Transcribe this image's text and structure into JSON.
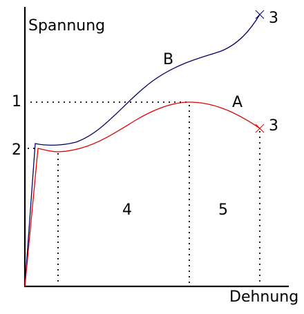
{
  "axes": {
    "y_label": "Spannung",
    "x_label": "Dehnung"
  },
  "curves": {
    "A": {
      "label": "A",
      "color": "#e00000"
    },
    "B": {
      "label": "B",
      "color": "#000066"
    }
  },
  "markers": {
    "level_1": "1",
    "level_2": "2",
    "fracture_A": "3",
    "fracture_B": "3"
  },
  "regions": {
    "region_4": "4",
    "region_5": "5"
  },
  "colors": {
    "axis": "#000000",
    "guide": "#000000",
    "background": "#ffffff"
  }
}
